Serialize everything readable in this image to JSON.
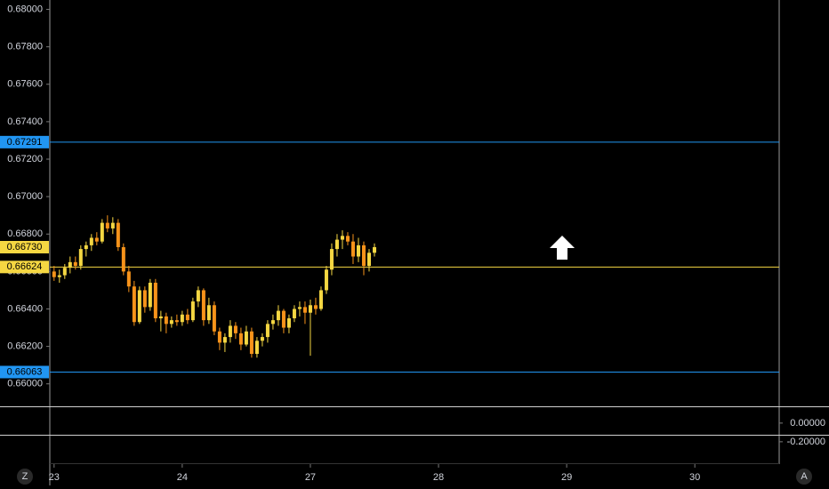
{
  "chart_data": {
    "type": "candlestick",
    "x": [
      0,
      1,
      2,
      3,
      4,
      5,
      6,
      7,
      8,
      9,
      10,
      11,
      12,
      13,
      14,
      15,
      16,
      17,
      18,
      19,
      20,
      21,
      22,
      23,
      24,
      25,
      26,
      27,
      28,
      29,
      30,
      31,
      32,
      33,
      34,
      35,
      36,
      37,
      38,
      39,
      40,
      41,
      42,
      43,
      44,
      45,
      46,
      47,
      48,
      49,
      50,
      51,
      52,
      53,
      54,
      55,
      56,
      57,
      58,
      59,
      60
    ],
    "open": [
      0.666,
      0.6657,
      0.6658,
      0.6662,
      0.6665,
      0.6663,
      0.6672,
      0.6674,
      0.6678,
      0.6676,
      0.6686,
      0.6683,
      0.6686,
      0.6673,
      0.666,
      0.6652,
      0.6633,
      0.665,
      0.6641,
      0.6654,
      0.6635,
      0.6636,
      0.6632,
      0.6634,
      0.6633,
      0.6637,
      0.6634,
      0.6644,
      0.665,
      0.6634,
      0.6642,
      0.6628,
      0.6622,
      0.6625,
      0.6631,
      0.6627,
      0.6621,
      0.6628,
      0.6616,
      0.6623,
      0.6625,
      0.6632,
      0.6634,
      0.6639,
      0.663,
      0.6635,
      0.664,
      0.6641,
      0.6638,
      0.6642,
      0.664,
      0.665,
      0.6661,
      0.6672,
      0.6677,
      0.6679,
      0.6676,
      0.6668,
      0.6674,
      0.6663,
      0.667
    ],
    "high": [
      0.6663,
      0.6661,
      0.6664,
      0.6668,
      0.6668,
      0.6674,
      0.6676,
      0.668,
      0.6681,
      0.6688,
      0.669,
      0.6689,
      0.6688,
      0.6675,
      0.6663,
      0.6655,
      0.6652,
      0.6652,
      0.6656,
      0.6656,
      0.6639,
      0.6638,
      0.6636,
      0.6637,
      0.6639,
      0.664,
      0.6646,
      0.6652,
      0.6651,
      0.6646,
      0.6644,
      0.663,
      0.6627,
      0.6634,
      0.6633,
      0.663,
      0.6631,
      0.663,
      0.6625,
      0.6627,
      0.6634,
      0.6637,
      0.6642,
      0.664,
      0.6637,
      0.6642,
      0.6644,
      0.6644,
      0.6645,
      0.6646,
      0.6652,
      0.6663,
      0.6675,
      0.668,
      0.6682,
      0.6681,
      0.668,
      0.6678,
      0.6676,
      0.6672,
      0.6675
    ],
    "low": [
      0.6655,
      0.6654,
      0.6656,
      0.6659,
      0.6661,
      0.6661,
      0.6668,
      0.6671,
      0.6674,
      0.6675,
      0.6681,
      0.668,
      0.6671,
      0.6658,
      0.6649,
      0.6631,
      0.6632,
      0.6638,
      0.6639,
      0.6633,
      0.6628,
      0.6627,
      0.663,
      0.6631,
      0.6631,
      0.6632,
      0.6633,
      0.6641,
      0.6631,
      0.6632,
      0.6626,
      0.6618,
      0.6617,
      0.6622,
      0.6624,
      0.6618,
      0.662,
      0.6614,
      0.6614,
      0.662,
      0.6622,
      0.6629,
      0.6631,
      0.6627,
      0.6627,
      0.6633,
      0.6636,
      0.6632,
      0.6615,
      0.6637,
      0.6639,
      0.6648,
      0.6658,
      0.6668,
      0.6672,
      0.6674,
      0.6664,
      0.6665,
      0.6658,
      0.666,
      0.6668
    ],
    "close": [
      0.6657,
      0.6658,
      0.6662,
      0.6665,
      0.6663,
      0.6672,
      0.6674,
      0.6678,
      0.6676,
      0.6686,
      0.6683,
      0.6686,
      0.6673,
      0.666,
      0.6652,
      0.6633,
      0.665,
      0.6641,
      0.6654,
      0.6635,
      0.6636,
      0.6632,
      0.6634,
      0.6633,
      0.6637,
      0.6634,
      0.6644,
      0.665,
      0.6634,
      0.6642,
      0.6628,
      0.6622,
      0.6625,
      0.6631,
      0.6627,
      0.6621,
      0.6628,
      0.6616,
      0.6623,
      0.6625,
      0.6632,
      0.6634,
      0.6639,
      0.663,
      0.6635,
      0.664,
      0.6641,
      0.6638,
      0.6642,
      0.664,
      0.665,
      0.6661,
      0.6672,
      0.6677,
      0.6679,
      0.6676,
      0.6668,
      0.6674,
      0.6663,
      0.667,
      0.6673
    ],
    "up_color": "#f5d742",
    "down_color": "#f7931a",
    "xlim": [
      -0.8,
      135.8
    ],
    "xticks": [
      {
        "value": 0,
        "label": "23"
      },
      {
        "value": 24,
        "label": "24"
      },
      {
        "value": 48,
        "label": "27"
      },
      {
        "value": 72,
        "label": "28"
      },
      {
        "value": 96,
        "label": "29"
      },
      {
        "value": 120,
        "label": "30"
      }
    ],
    "ylim": [
      0.6588,
      0.6805
    ],
    "yticks": [
      {
        "value": 0.68,
        "label": "0.68000"
      },
      {
        "value": 0.678,
        "label": "0.67800"
      },
      {
        "value": 0.676,
        "label": "0.67600"
      },
      {
        "value": 0.674,
        "label": "0.67400"
      },
      {
        "value": 0.672,
        "label": "0.67200"
      },
      {
        "value": 0.67,
        "label": "0.67000"
      },
      {
        "value": 0.668,
        "label": "0.66800"
      },
      {
        "value": 0.666,
        "label": "0.66600"
      },
      {
        "value": 0.664,
        "label": "0.66400"
      },
      {
        "value": 0.662,
        "label": "0.66200"
      },
      {
        "value": 0.66,
        "label": "0.66000"
      }
    ],
    "levels": [
      {
        "value": 0.67291,
        "label": "0.67291",
        "color": "#2196f3"
      },
      {
        "value": 0.66624,
        "label": "0.66624",
        "color": "#f5d742"
      },
      {
        "value": 0.66063,
        "label": "0.66063",
        "color": "#2196f3"
      }
    ],
    "last_price": {
      "value": 0.6673,
      "label": "0.66730",
      "color": "#f5d742"
    },
    "sub_pane": {
      "ylim": [
        -0.42,
        0.17
      ],
      "yticks": [
        {
          "value": 0,
          "label": "0.00000"
        },
        {
          "value": -0.2,
          "label": "-0.20000"
        }
      ]
    }
  },
  "ui": {
    "left_button": "Z",
    "right_button": "A"
  }
}
